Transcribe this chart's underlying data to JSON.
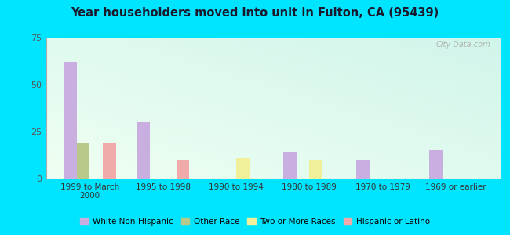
{
  "title": "Year householders moved into unit in Fulton, CA (95439)",
  "categories": [
    "1999 to March\n2000",
    "1995 to 1998",
    "1990 to 1994",
    "1980 to 1989",
    "1970 to 1979",
    "1969 or earlier"
  ],
  "series": {
    "White Non-Hispanic": [
      62,
      30,
      0,
      14,
      10,
      15
    ],
    "Other Race": [
      19,
      0,
      0,
      0,
      0,
      0
    ],
    "Two or More Races": [
      0,
      0,
      11,
      10,
      0,
      0
    ],
    "Hispanic or Latino": [
      19,
      10,
      0,
      0,
      0,
      0
    ]
  },
  "colors": {
    "White Non-Hispanic": "#c9aee0",
    "Other Race": "#b8c98a",
    "Two or More Races": "#f0f09a",
    "Hispanic or Latino": "#f0aaaa"
  },
  "ylim": [
    0,
    75
  ],
  "yticks": [
    0,
    25,
    50,
    75
  ],
  "bg_outer": "#00e5ff",
  "watermark": "City-Data.com",
  "bar_width": 0.18
}
